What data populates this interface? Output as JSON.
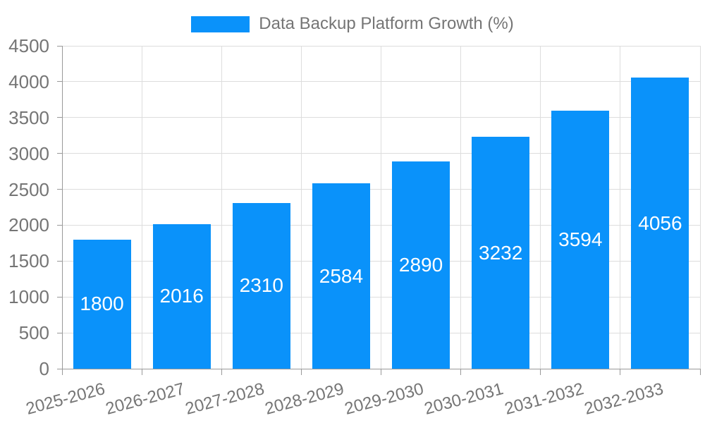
{
  "legend": {
    "label": "Data Backup Platform Growth (%)"
  },
  "colors": {
    "bar": "#0a92fa",
    "grid": "#dddddd",
    "axis": "#999999",
    "tick_text": "#757575",
    "value_text": "#ffffff",
    "background": "#ffffff"
  },
  "chart_data": {
    "type": "bar",
    "title": "Data Backup Platform Growth (%)",
    "series_name": "Data Backup Platform Growth (%)",
    "categories": [
      "2025-2026",
      "2026-2027",
      "2027-2028",
      "2028-2029",
      "2029-2030",
      "2030-2031",
      "2031-2032",
      "2032-2033"
    ],
    "values": [
      1800,
      2016,
      2310,
      2584,
      2890,
      3232,
      3594,
      4056
    ],
    "xlabel": "",
    "ylabel": "",
    "ylim": [
      0,
      4500
    ],
    "yticks": [
      0,
      500,
      1000,
      1500,
      2000,
      2500,
      3000,
      3500,
      4000,
      4500
    ],
    "grid": true,
    "legend_position": "top-center",
    "bar_label_position": "center-of-bar",
    "bar_label_color": "#ffffff",
    "xtick_rotation_deg": 15
  }
}
